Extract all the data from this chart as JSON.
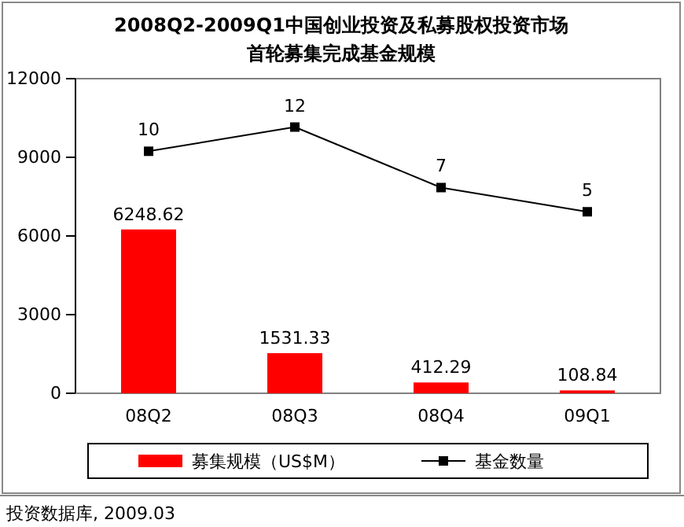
{
  "chart_data": {
    "type": "bar",
    "title": "2008Q2-2009Q1中国创业投资及私募股权投资市场",
    "subtitle": "首轮募集完成基金规模",
    "categories": [
      "08Q2",
      "08Q3",
      "08Q4",
      "09Q1"
    ],
    "series": [
      {
        "name": "募集规模（US$M）",
        "color": "#ff0000",
        "values": [
          6248.62,
          1531.33,
          412.29,
          108.84
        ]
      },
      {
        "name": "基金数量",
        "type": "line",
        "axis": "y2",
        "color": "#000000",
        "values": [
          10,
          12,
          7,
          5
        ],
        "marker": "square"
      }
    ],
    "ylim": [
      0,
      12000
    ],
    "yticks": [
      0,
      3000,
      6000,
      9000,
      12000
    ],
    "y2lim": [
      -10,
      16
    ],
    "data_labels": true,
    "grid": false,
    "legend": "bottom",
    "annotations": [
      "投资数据库, 2009.03"
    ]
  }
}
